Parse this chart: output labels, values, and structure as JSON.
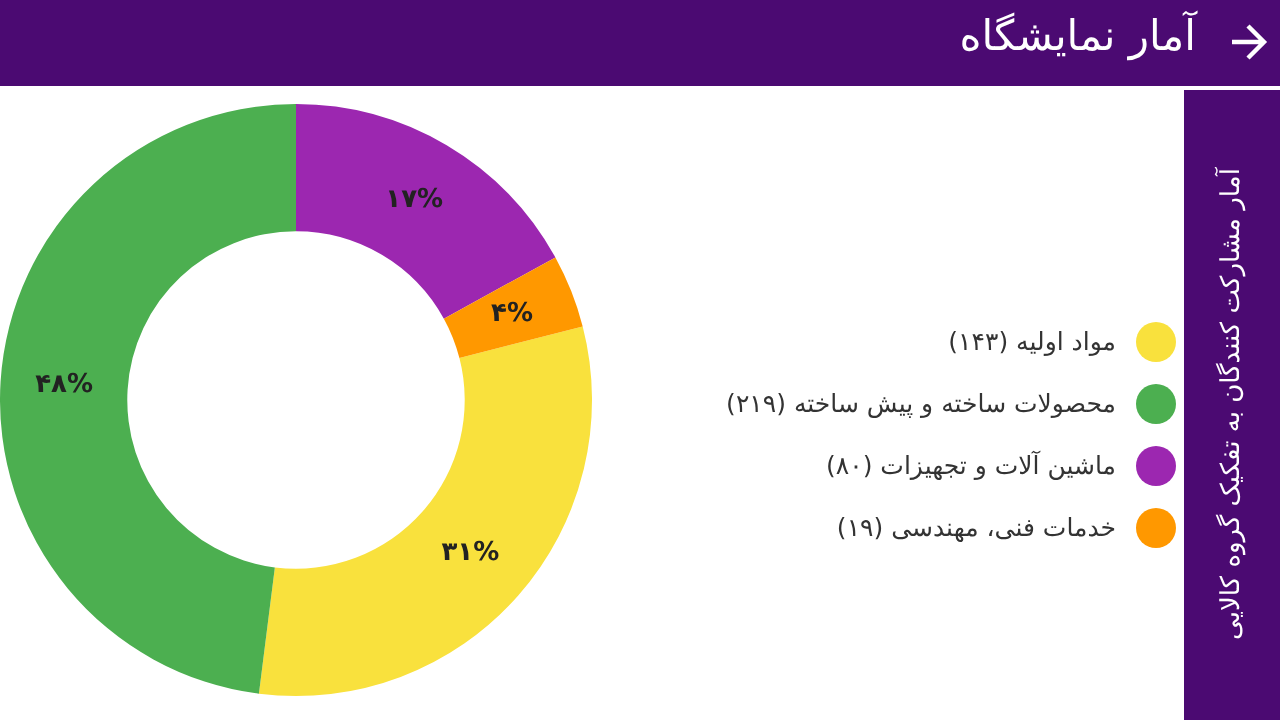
{
  "chart_data": {
    "type": "donut",
    "title": "آمار نمایشگاه",
    "subtitle": "آمار مشارکت کنندگان به تفکیک گروه کالایی",
    "categories": [
      "مواد اولیه (۱۴۳)",
      "محصولات ساخته و پیش ساخته (۲۱۹)",
      "ماشین آلات و تجهیزات (۸۰)",
      "خدمات فنی، مهندسی (۱۹)"
    ],
    "values": [
      31,
      48,
      17,
      4
    ],
    "colors": [
      "#f9e13d",
      "#4caf50",
      "#9c27b0",
      "#ff9800"
    ],
    "value_labels": [
      "۳۱%",
      "۴۸%",
      "۱۷%",
      "۴%"
    ],
    "legend": "right"
  }
}
